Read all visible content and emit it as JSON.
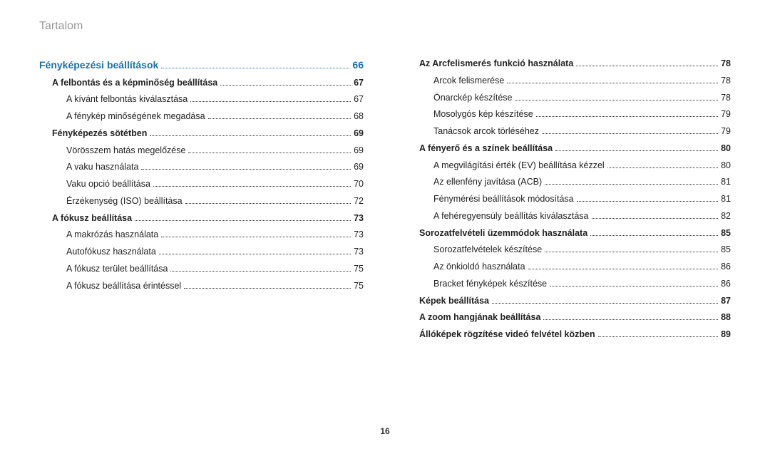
{
  "header": "Tartalom",
  "pageNumber": "16",
  "left": [
    {
      "level": "chapter",
      "title": "Fényképezési beállítások",
      "page": "66"
    },
    {
      "level": "section",
      "title": "A felbontás és a képminőség beállítása",
      "page": "67"
    },
    {
      "level": "sub",
      "title": "A kívánt felbontás kiválasztása",
      "page": "67"
    },
    {
      "level": "sub",
      "title": "A fénykép minőségének megadása",
      "page": "68"
    },
    {
      "level": "section",
      "title": "Fényképezés sötétben",
      "page": "69"
    },
    {
      "level": "sub",
      "title": "Vörösszem hatás megelőzése",
      "page": "69"
    },
    {
      "level": "sub",
      "title": "A vaku használata",
      "page": "69"
    },
    {
      "level": "sub",
      "title": "Vaku opció beállítása",
      "page": "70"
    },
    {
      "level": "sub",
      "title": "Érzékenység (ISO) beállítása",
      "page": "72"
    },
    {
      "level": "section",
      "title": "A fókusz beállítása",
      "page": "73"
    },
    {
      "level": "sub",
      "title": "A makrózás használata",
      "page": "73"
    },
    {
      "level": "sub",
      "title": "Autofókusz használata",
      "page": "73"
    },
    {
      "level": "sub",
      "title": "A fókusz terület beállítása",
      "page": "75"
    },
    {
      "level": "sub",
      "title": "A fókusz beállítása érintéssel",
      "page": "75"
    }
  ],
  "right": [
    {
      "level": "section",
      "title": "Az Arcfelismerés funkció használata",
      "page": "78"
    },
    {
      "level": "sub",
      "title": "Arcok felismerése",
      "page": "78"
    },
    {
      "level": "sub",
      "title": "Önarckép készítése",
      "page": "78"
    },
    {
      "level": "sub",
      "title": "Mosolygós kép készítése",
      "page": "79"
    },
    {
      "level": "sub",
      "title": "Tanácsok arcok törléséhez",
      "page": "79"
    },
    {
      "level": "section",
      "title": "A fényerő és a színek beállítása",
      "page": "80"
    },
    {
      "level": "sub",
      "title": "A megvilágítási érték (EV) beállítása kézzel",
      "page": "80"
    },
    {
      "level": "sub",
      "title": "Az ellenfény javítása (ACB)",
      "page": "81"
    },
    {
      "level": "sub",
      "title": "Fénymérési beállítások módosítása",
      "page": "81"
    },
    {
      "level": "sub",
      "title": "A fehéregyensúly beállítás kiválasztása",
      "page": "82"
    },
    {
      "level": "section",
      "title": "Sorozatfelvételi üzemmódok használata",
      "page": "85"
    },
    {
      "level": "sub",
      "title": "Sorozatfelvételek készítése",
      "page": "85"
    },
    {
      "level": "sub",
      "title": "Az önkioldó használata",
      "page": "86"
    },
    {
      "level": "sub",
      "title": "Bracket fényképek készítése",
      "page": "86"
    },
    {
      "level": "section",
      "title": "Képek beállítása",
      "page": "87"
    },
    {
      "level": "section",
      "title": "A zoom hangjának beállítása",
      "page": "88"
    },
    {
      "level": "section",
      "title": "Állóképek rögzítése videó felvétel közben",
      "page": "89"
    }
  ]
}
